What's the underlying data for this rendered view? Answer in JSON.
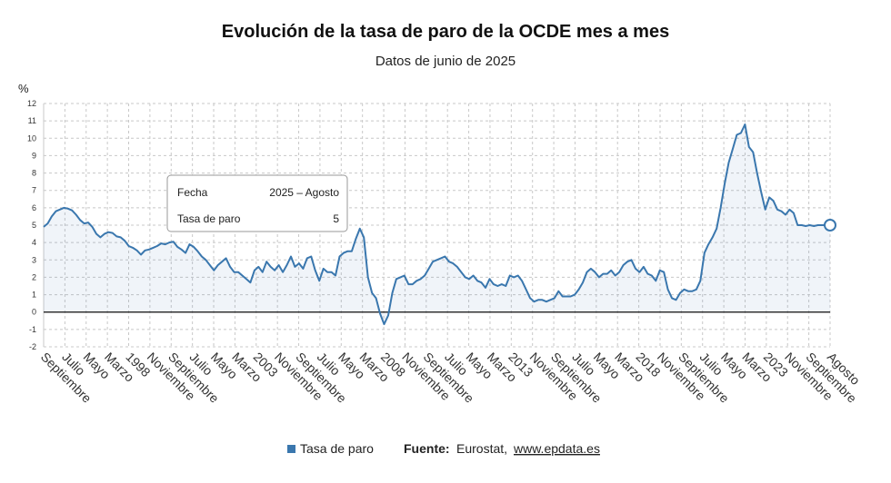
{
  "chart_data": {
    "type": "area",
    "title": "Evolución de la tasa de paro de la OCDE mes a mes",
    "subtitle": "Datos de junio de 2025",
    "ylabel": "%",
    "ylim": [
      -2,
      12
    ],
    "yticks": [
      -2,
      -1,
      0,
      1,
      2,
      3,
      4,
      5,
      6,
      7,
      8,
      9,
      10,
      11,
      12
    ],
    "grid": true,
    "legend_position": "bottom",
    "x_tick_labels": [
      "Septiembre",
      "Julio",
      "Mayo",
      "Marzo",
      "1998",
      "Noviembre",
      "Septiembre",
      "Julio",
      "Mayo",
      "Marzo",
      "2003",
      "Noviembre",
      "Septiembre",
      "Julio",
      "Mayo",
      "Marzo",
      "2008",
      "Noviembre",
      "Septiembre",
      "Julio",
      "Mayo",
      "Marzo",
      "2013",
      "Noviembre",
      "Septiembre",
      "Julio",
      "Mayo",
      "Marzo",
      "2018",
      "Noviembre",
      "Septiembre",
      "Julio",
      "Mayo",
      "Marzo",
      "2023",
      "Noviembre",
      "Septiembre",
      "Agosto"
    ],
    "series": [
      {
        "name": "Tasa de paro",
        "color": "#3a77ae",
        "values": [
          4.9,
          5.1,
          5.5,
          5.8,
          5.9,
          6.0,
          5.95,
          5.85,
          5.6,
          5.3,
          5.1,
          5.15,
          4.9,
          4.5,
          4.3,
          4.5,
          4.6,
          4.55,
          4.35,
          4.3,
          4.1,
          3.8,
          3.7,
          3.55,
          3.3,
          3.55,
          3.6,
          3.7,
          3.8,
          3.95,
          3.9,
          4.0,
          4.05,
          3.75,
          3.6,
          3.4,
          3.9,
          3.75,
          3.5,
          3.2,
          3.0,
          2.7,
          2.4,
          2.7,
          2.9,
          3.1,
          2.6,
          2.3,
          2.3,
          2.1,
          1.9,
          1.7,
          2.4,
          2.6,
          2.3,
          2.9,
          2.6,
          2.4,
          2.7,
          2.3,
          2.7,
          3.2,
          2.6,
          2.8,
          2.5,
          3.1,
          3.2,
          2.4,
          1.8,
          2.5,
          2.3,
          2.3,
          2.1,
          3.2,
          3.4,
          3.5,
          3.5,
          4.2,
          4.8,
          4.3,
          2.0,
          1.1,
          0.8,
          -0.1,
          -0.7,
          -0.2,
          1.1,
          1.9,
          2.0,
          2.1,
          1.6,
          1.6,
          1.8,
          1.9,
          2.1,
          2.5,
          2.9,
          3.0,
          3.1,
          3.2,
          2.9,
          2.8,
          2.6,
          2.3,
          2.0,
          1.9,
          2.1,
          1.8,
          1.7,
          1.4,
          1.9,
          1.6,
          1.5,
          1.6,
          1.5,
          2.1,
          2.0,
          2.1,
          1.8,
          1.3,
          0.8,
          0.6,
          0.7,
          0.7,
          0.6,
          0.7,
          0.8,
          1.2,
          0.9,
          0.9,
          0.9,
          1.0,
          1.3,
          1.7,
          2.3,
          2.5,
          2.3,
          2.0,
          2.2,
          2.2,
          2.4,
          2.1,
          2.3,
          2.7,
          2.9,
          3.0,
          2.5,
          2.3,
          2.6,
          2.2,
          2.1,
          1.8,
          2.4,
          2.3,
          1.3,
          0.8,
          0.7,
          1.1,
          1.3,
          1.2,
          1.2,
          1.3,
          1.8,
          3.4,
          3.9,
          4.3,
          4.8,
          6.0,
          7.4,
          8.6,
          9.4,
          10.2,
          10.3,
          10.8,
          9.5,
          9.2,
          8.0,
          6.9,
          5.9,
          6.6,
          6.4,
          5.9,
          5.8,
          5.6,
          5.9,
          5.7,
          5.0,
          5.0,
          4.95,
          5.0,
          4.95,
          5.0,
          5.0,
          5.0,
          5.0
        ]
      }
    ],
    "tooltip": {
      "date_label": "Fecha",
      "date_value": "2025 – Agosto",
      "value_label": "Tasa de paro",
      "value": "5"
    }
  },
  "legend": {
    "series_label": "Tasa de paro",
    "series_color": "#3a77ae"
  },
  "source": {
    "label": "Fuente:",
    "text": "Eurostat,",
    "link": "www.epdata.es"
  }
}
